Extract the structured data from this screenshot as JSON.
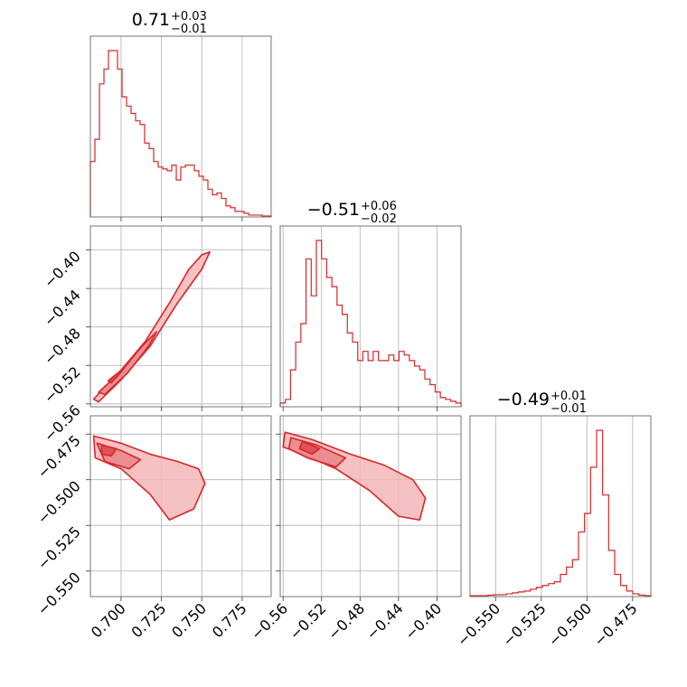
{
  "chart_data": {
    "type": "corner",
    "color": "#d62728",
    "fill_colors": [
      "#f4b6b8",
      "#e88589",
      "#d94a50"
    ],
    "parameters": [
      {
        "title_value": "0.71",
        "title_plus": "+0.03",
        "title_minus": "−0.01",
        "range": [
          0.681,
          0.793
        ],
        "ticks": [
          0.7,
          0.725,
          0.75,
          0.775
        ],
        "tick_labels": [
          "0.700",
          "0.725",
          "0.750",
          "0.775"
        ],
        "histogram": [
          0.3,
          0.42,
          0.72,
          0.8,
          0.9,
          0.9,
          0.8,
          0.65,
          0.6,
          0.56,
          0.52,
          0.5,
          0.4,
          0.37,
          0.3,
          0.27,
          0.26,
          0.25,
          0.28,
          0.2,
          0.27,
          0.28,
          0.28,
          0.25,
          0.22,
          0.2,
          0.15,
          0.12,
          0.13,
          0.1,
          0.06,
          0.05,
          0.03,
          0.03,
          0.02,
          0.01,
          0.01,
          0.01,
          0.005,
          0.005
        ]
      },
      {
        "title_value": "−0.51",
        "title_plus": "+0.06",
        "title_minus": "−0.02",
        "range": [
          -0.563,
          -0.375
        ],
        "ticks": [
          -0.56,
          -0.52,
          -0.48,
          -0.44,
          -0.4
        ],
        "tick_labels": [
          "−0.56",
          "−0.52",
          "−0.48",
          "−0.44",
          "−0.40"
        ],
        "histogram": [
          0.02,
          0.04,
          0.2,
          0.35,
          0.45,
          0.8,
          0.6,
          0.9,
          0.8,
          0.7,
          0.65,
          0.55,
          0.5,
          0.4,
          0.35,
          0.25,
          0.3,
          0.25,
          0.3,
          0.25,
          0.25,
          0.28,
          0.25,
          0.3,
          0.28,
          0.25,
          0.22,
          0.2,
          0.15,
          0.12,
          0.08,
          0.05,
          0.04,
          0.03,
          0.02
        ]
      },
      {
        "title_value": "−0.49",
        "title_plus": "+0.01",
        "title_minus": "−0.01",
        "range": [
          -0.564,
          -0.465
        ],
        "ticks": [
          -0.55,
          -0.525,
          -0.5,
          -0.475
        ],
        "tick_labels": [
          "−0.550",
          "−0.525",
          "−0.500",
          "−0.475"
        ],
        "histogram": [
          0.005,
          0.005,
          0.005,
          0.008,
          0.01,
          0.01,
          0.015,
          0.02,
          0.025,
          0.03,
          0.04,
          0.05,
          0.06,
          0.07,
          0.08,
          0.12,
          0.16,
          0.2,
          0.35,
          0.45,
          0.7,
          0.9,
          0.55,
          0.25,
          0.12,
          0.06,
          0.03,
          0.015,
          0.008,
          0.005
        ]
      }
    ],
    "pairs": [
      {
        "row": 1,
        "col": 0,
        "correlation": "positive",
        "contours": [
          {
            "level": 1,
            "points": [
              [
                0.683,
                -0.555
              ],
              [
                0.7,
                -0.525
              ],
              [
                0.715,
                -0.495
              ],
              [
                0.73,
                -0.455
              ],
              [
                0.742,
                -0.42
              ],
              [
                0.75,
                -0.405
              ],
              [
                0.755,
                -0.402
              ],
              [
                0.75,
                -0.42
              ],
              [
                0.735,
                -0.455
              ],
              [
                0.718,
                -0.5
              ],
              [
                0.7,
                -0.535
              ],
              [
                0.686,
                -0.558
              ]
            ]
          },
          {
            "level": 2,
            "points": [
              [
                0.686,
                -0.548
              ],
              [
                0.7,
                -0.526
              ],
              [
                0.713,
                -0.5
              ],
              [
                0.722,
                -0.485
              ],
              [
                0.717,
                -0.5
              ],
              [
                0.704,
                -0.528
              ],
              [
                0.69,
                -0.55
              ]
            ]
          },
          {
            "level": 3,
            "points": [
              [
                0.692,
                -0.536
              ],
              [
                0.7,
                -0.525
              ],
              [
                0.705,
                -0.516
              ],
              [
                0.7,
                -0.527
              ],
              [
                0.694,
                -0.538
              ]
            ]
          }
        ]
      },
      {
        "row": 2,
        "col": 0,
        "correlation": "negative",
        "contours": [
          {
            "level": 1,
            "points": [
              [
                0.683,
                -0.476
              ],
              [
                0.7,
                -0.48
              ],
              [
                0.718,
                -0.486
              ],
              [
                0.735,
                -0.49
              ],
              [
                0.748,
                -0.494
              ],
              [
                0.752,
                -0.502
              ],
              [
                0.745,
                -0.516
              ],
              [
                0.73,
                -0.522
              ],
              [
                0.718,
                -0.508
              ],
              [
                0.7,
                -0.494
              ],
              [
                0.684,
                -0.488
              ]
            ]
          },
          {
            "level": 2,
            "points": [
              [
                0.685,
                -0.48
              ],
              [
                0.7,
                -0.484
              ],
              [
                0.712,
                -0.489
              ],
              [
                0.705,
                -0.494
              ],
              [
                0.69,
                -0.49
              ]
            ]
          },
          {
            "level": 3,
            "points": [
              [
                0.688,
                -0.481
              ],
              [
                0.697,
                -0.483
              ],
              [
                0.694,
                -0.487
              ],
              [
                0.688,
                -0.486
              ]
            ]
          }
        ]
      },
      {
        "row": 2,
        "col": 1,
        "correlation": "negative",
        "contours": [
          {
            "level": 1,
            "points": [
              [
                -0.558,
                -0.474
              ],
              [
                -0.53,
                -0.478
              ],
              [
                -0.49,
                -0.486
              ],
              [
                -0.455,
                -0.492
              ],
              [
                -0.425,
                -0.5
              ],
              [
                -0.412,
                -0.51
              ],
              [
                -0.418,
                -0.522
              ],
              [
                -0.44,
                -0.52
              ],
              [
                -0.47,
                -0.506
              ],
              [
                -0.505,
                -0.494
              ],
              [
                -0.54,
                -0.486
              ],
              [
                -0.56,
                -0.482
              ]
            ]
          },
          {
            "level": 2,
            "points": [
              [
                -0.552,
                -0.477
              ],
              [
                -0.525,
                -0.481
              ],
              [
                -0.495,
                -0.488
              ],
              [
                -0.505,
                -0.493
              ],
              [
                -0.535,
                -0.488
              ],
              [
                -0.554,
                -0.483
              ]
            ]
          },
          {
            "level": 3,
            "points": [
              [
                -0.54,
                -0.479
              ],
              [
                -0.522,
                -0.483
              ],
              [
                -0.53,
                -0.486
              ],
              [
                -0.543,
                -0.483
              ]
            ]
          }
        ]
      }
    ]
  }
}
